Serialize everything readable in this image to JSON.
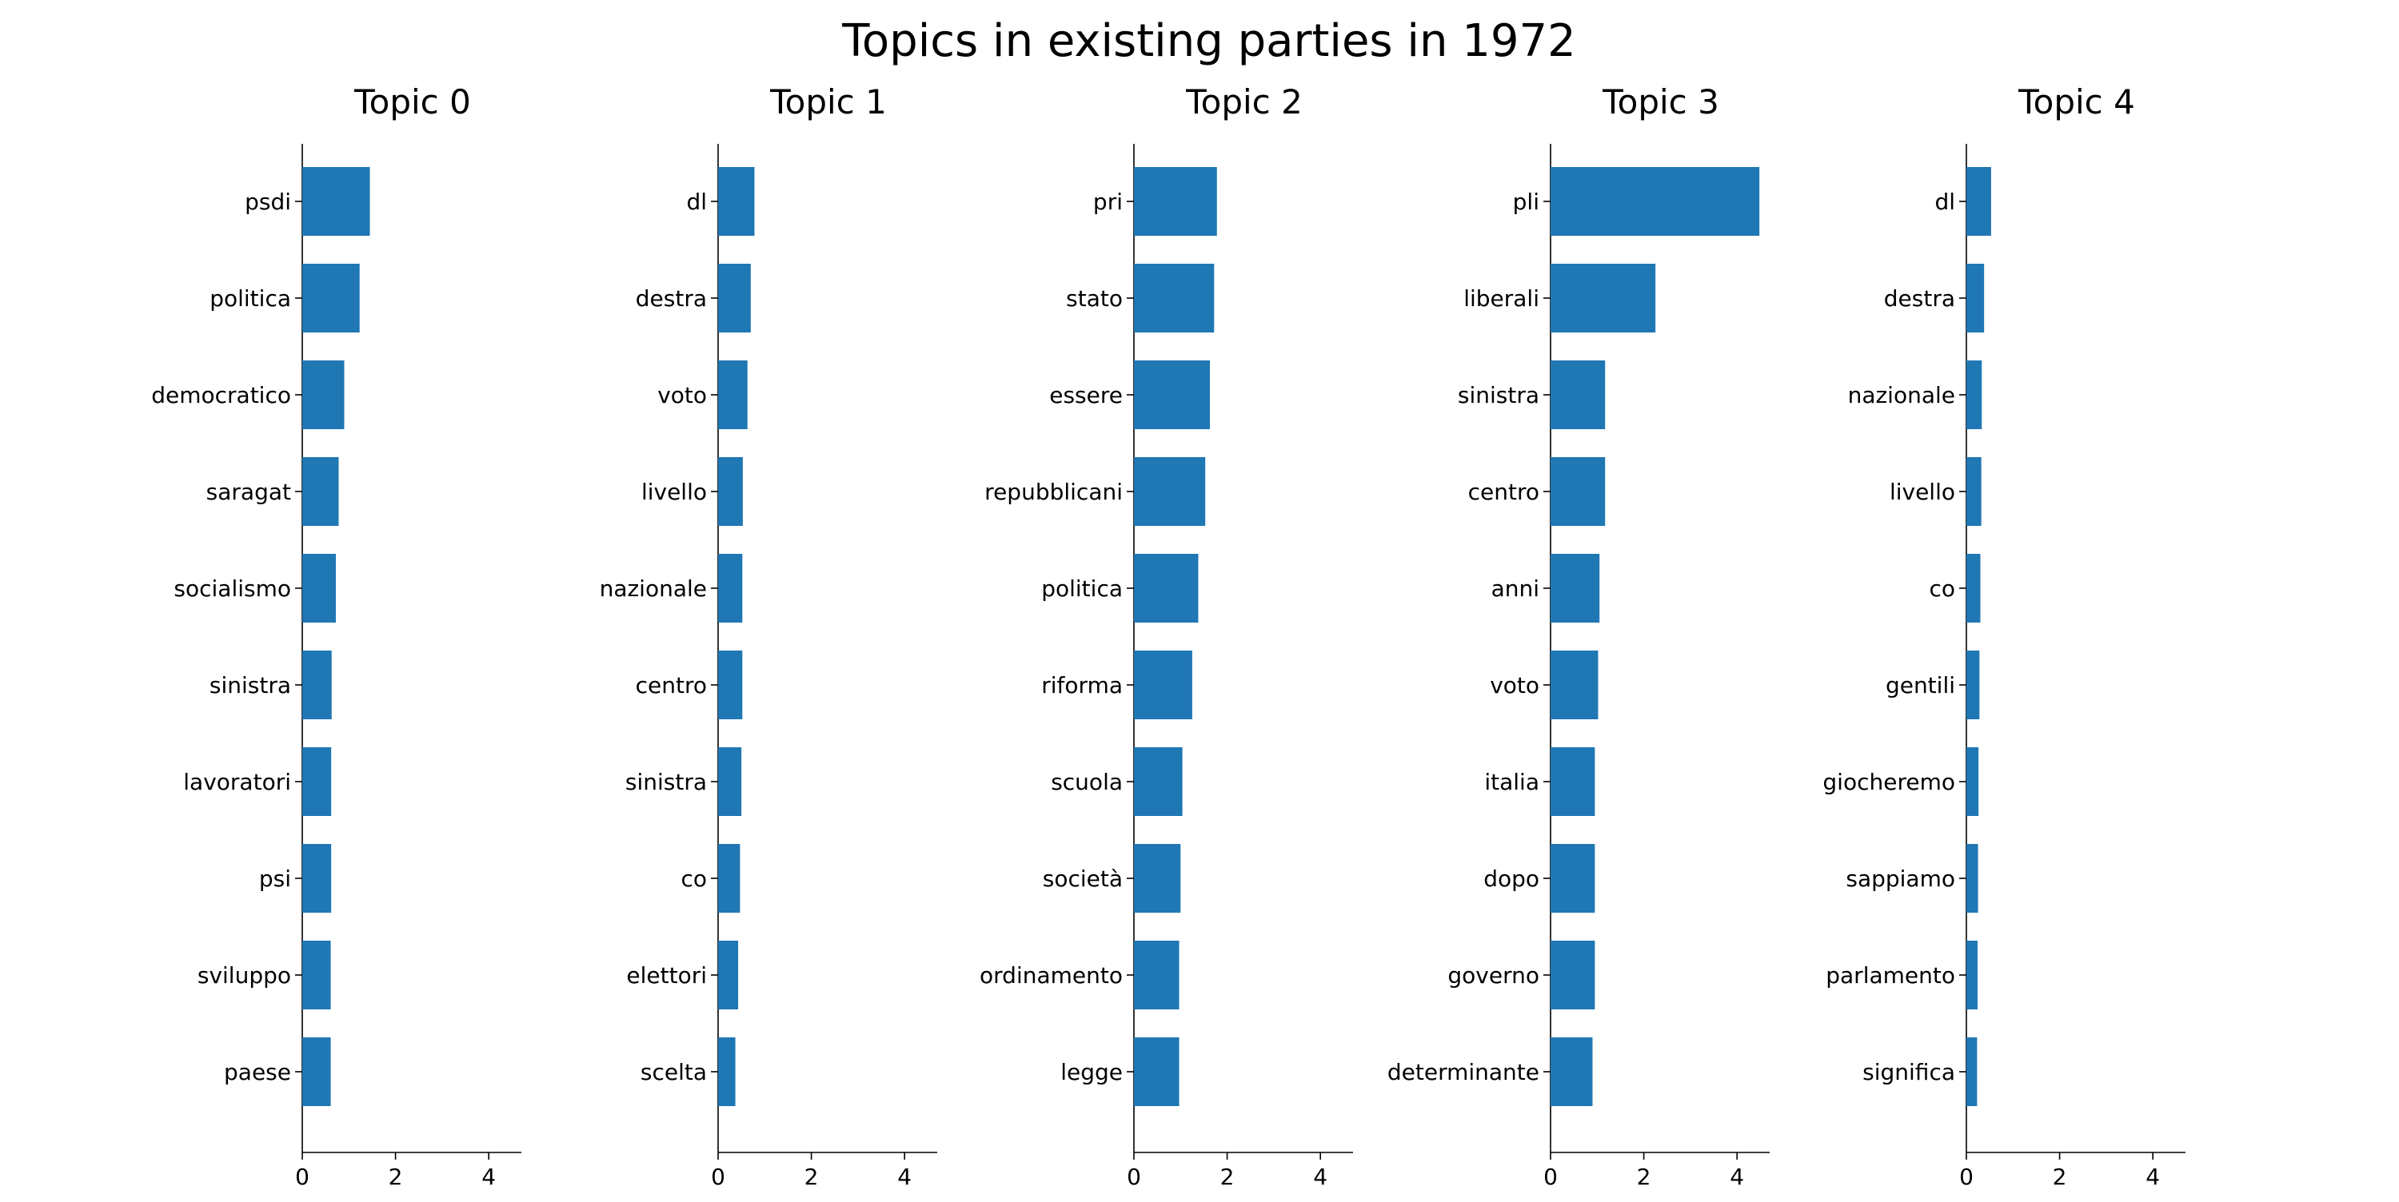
{
  "chart_data": {
    "type": "bar",
    "orientation": "horizontal",
    "title": "Topics in existing parties in 1972",
    "bar_color": "#1f77b4",
    "xlim": [
      0,
      4.7
    ],
    "x_ticks": [
      0,
      2,
      4
    ],
    "grid": false,
    "panels": [
      {
        "title": "Topic 0",
        "categories": [
          "psdi",
          "politica",
          "democratico",
          "saragat",
          "socialismo",
          "sinistra",
          "lavoratori",
          "psi",
          "sviluppo",
          "paese"
        ],
        "values": [
          1.45,
          1.23,
          0.9,
          0.78,
          0.72,
          0.63,
          0.62,
          0.62,
          0.61,
          0.61
        ]
      },
      {
        "title": "Topic 1",
        "categories": [
          "dl",
          "destra",
          "voto",
          "livello",
          "nazionale",
          "centro",
          "sinistra",
          "co",
          "elettori",
          "scelta"
        ],
        "values": [
          0.78,
          0.7,
          0.63,
          0.53,
          0.52,
          0.52,
          0.5,
          0.47,
          0.43,
          0.37
        ]
      },
      {
        "title": "Topic 2",
        "categories": [
          "pri",
          "stato",
          "essere",
          "repubblicani",
          "politica",
          "riforma",
          "scuola",
          "società",
          "ordinamento",
          "legge"
        ],
        "values": [
          1.78,
          1.72,
          1.63,
          1.53,
          1.38,
          1.25,
          1.04,
          1.0,
          0.97,
          0.97
        ]
      },
      {
        "title": "Topic 3",
        "categories": [
          "pli",
          "liberali",
          "sinistra",
          "centro",
          "anni",
          "voto",
          "italia",
          "dopo",
          "governo",
          "determinante"
        ],
        "values": [
          4.48,
          2.25,
          1.17,
          1.17,
          1.05,
          1.02,
          0.95,
          0.95,
          0.95,
          0.9
        ]
      },
      {
        "title": "Topic 4",
        "categories": [
          "dl",
          "destra",
          "nazionale",
          "livello",
          "co",
          "gentili",
          "giocheremo",
          "sappiamo",
          "parlamento",
          "significa"
        ],
        "values": [
          0.53,
          0.38,
          0.33,
          0.32,
          0.3,
          0.28,
          0.26,
          0.25,
          0.24,
          0.23
        ]
      }
    ]
  }
}
